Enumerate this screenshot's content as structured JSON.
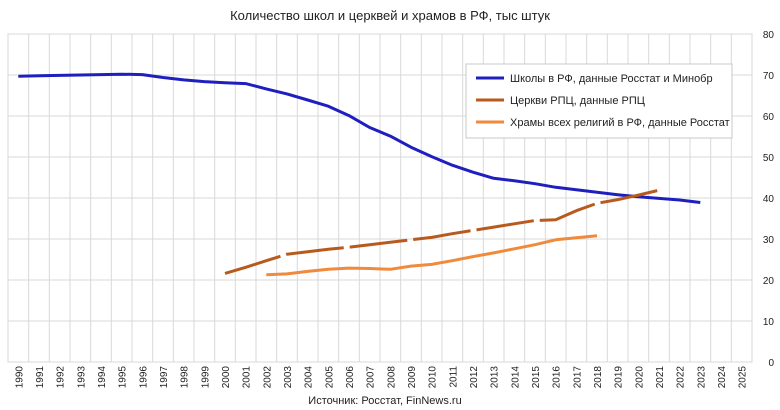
{
  "chart_data": {
    "type": "line",
    "title": "Количество школ и церквей и храмов в РФ, тыс штук",
    "source": "Источник: Росстат, FinNews.ru",
    "xlabel": "",
    "ylabel": "",
    "xlim": [
      1990,
      2025
    ],
    "ylim": [
      0,
      80
    ],
    "x_ticks": [
      "1990",
      "1991",
      "1992",
      "1993",
      "1994",
      "1995",
      "1996",
      "1997",
      "1998",
      "1999",
      "2000",
      "2001",
      "2002",
      "2003",
      "2004",
      "2005",
      "2006",
      "2007",
      "2008",
      "2009",
      "2010",
      "2011",
      "2012",
      "2013",
      "2014",
      "2015",
      "2016",
      "2017",
      "2018",
      "2019",
      "2020",
      "2021",
      "2022",
      "2023",
      "2024",
      "2025"
    ],
    "y_ticks": [
      "0",
      "10",
      "20",
      "30",
      "40",
      "50",
      "60",
      "70",
      "80"
    ],
    "grid": {
      "horizontal": true,
      "vertical": true
    },
    "legend_position": "top-right",
    "series": [
      {
        "name": "Школы в РФ, данные Росстат и Минобр",
        "color": "#1f1fbf",
        "dashed": false,
        "points": [
          [
            1990,
            69.7
          ],
          [
            1991,
            69.8
          ],
          [
            1992,
            69.9
          ],
          [
            1993,
            70.0
          ],
          [
            1994,
            70.1
          ],
          [
            1995,
            70.2
          ],
          [
            1996,
            70.1
          ],
          [
            1997,
            69.4
          ],
          [
            1998,
            68.8
          ],
          [
            1999,
            68.4
          ],
          [
            2000,
            68.1
          ],
          [
            2001,
            67.9
          ],
          [
            2002,
            66.6
          ],
          [
            2003,
            65.4
          ],
          [
            2004,
            63.9
          ],
          [
            2005,
            62.4
          ],
          [
            2006,
            60.1
          ],
          [
            2007,
            57.2
          ],
          [
            2008,
            55.1
          ],
          [
            2009,
            52.4
          ],
          [
            2010,
            50.1
          ],
          [
            2011,
            48.0
          ],
          [
            2012,
            46.3
          ],
          [
            2013,
            44.8
          ],
          [
            2014,
            44.2
          ],
          [
            2015,
            43.5
          ],
          [
            2016,
            42.6
          ],
          [
            2017,
            42.0
          ],
          [
            2018,
            41.4
          ],
          [
            2019,
            40.8
          ],
          [
            2020,
            40.3
          ],
          [
            2021,
            39.9
          ],
          [
            2022,
            39.5
          ],
          [
            2023,
            38.9
          ]
        ]
      },
      {
        "name": "Церкви РПЦ, данные РПЦ",
        "color": "#b85a1e",
        "dashed": true,
        "points": [
          [
            2000,
            21.6
          ],
          [
            2001,
            23.1
          ],
          [
            2002,
            24.7
          ],
          [
            2003,
            26.3
          ],
          [
            2004,
            26.9
          ],
          [
            2005,
            27.5
          ],
          [
            2006,
            28.0
          ],
          [
            2007,
            28.6
          ],
          [
            2008,
            29.2
          ],
          [
            2009,
            29.8
          ],
          [
            2010,
            30.4
          ],
          [
            2011,
            31.3
          ],
          [
            2012,
            32.1
          ],
          [
            2013,
            32.9
          ],
          [
            2014,
            33.7
          ],
          [
            2015,
            34.5
          ],
          [
            2016,
            34.7
          ],
          [
            2017,
            36.9
          ],
          [
            2018,
            38.7
          ],
          [
            2019,
            39.6
          ],
          [
            2020,
            40.7
          ],
          [
            2021,
            41.9
          ]
        ]
      },
      {
        "name": "Храмы всех религий в РФ, данные Росстат",
        "color": "#f08a3c",
        "dashed": false,
        "points": [
          [
            2002,
            21.3
          ],
          [
            2003,
            21.5
          ],
          [
            2004,
            22.1
          ],
          [
            2005,
            22.6
          ],
          [
            2006,
            22.9
          ],
          [
            2007,
            22.8
          ],
          [
            2008,
            22.6
          ],
          [
            2009,
            23.4
          ],
          [
            2010,
            23.8
          ],
          [
            2011,
            24.7
          ],
          [
            2012,
            25.7
          ],
          [
            2013,
            26.6
          ],
          [
            2014,
            27.6
          ],
          [
            2015,
            28.6
          ],
          [
            2016,
            29.8
          ],
          [
            2017,
            30.3
          ],
          [
            2018,
            30.8
          ]
        ]
      }
    ]
  }
}
